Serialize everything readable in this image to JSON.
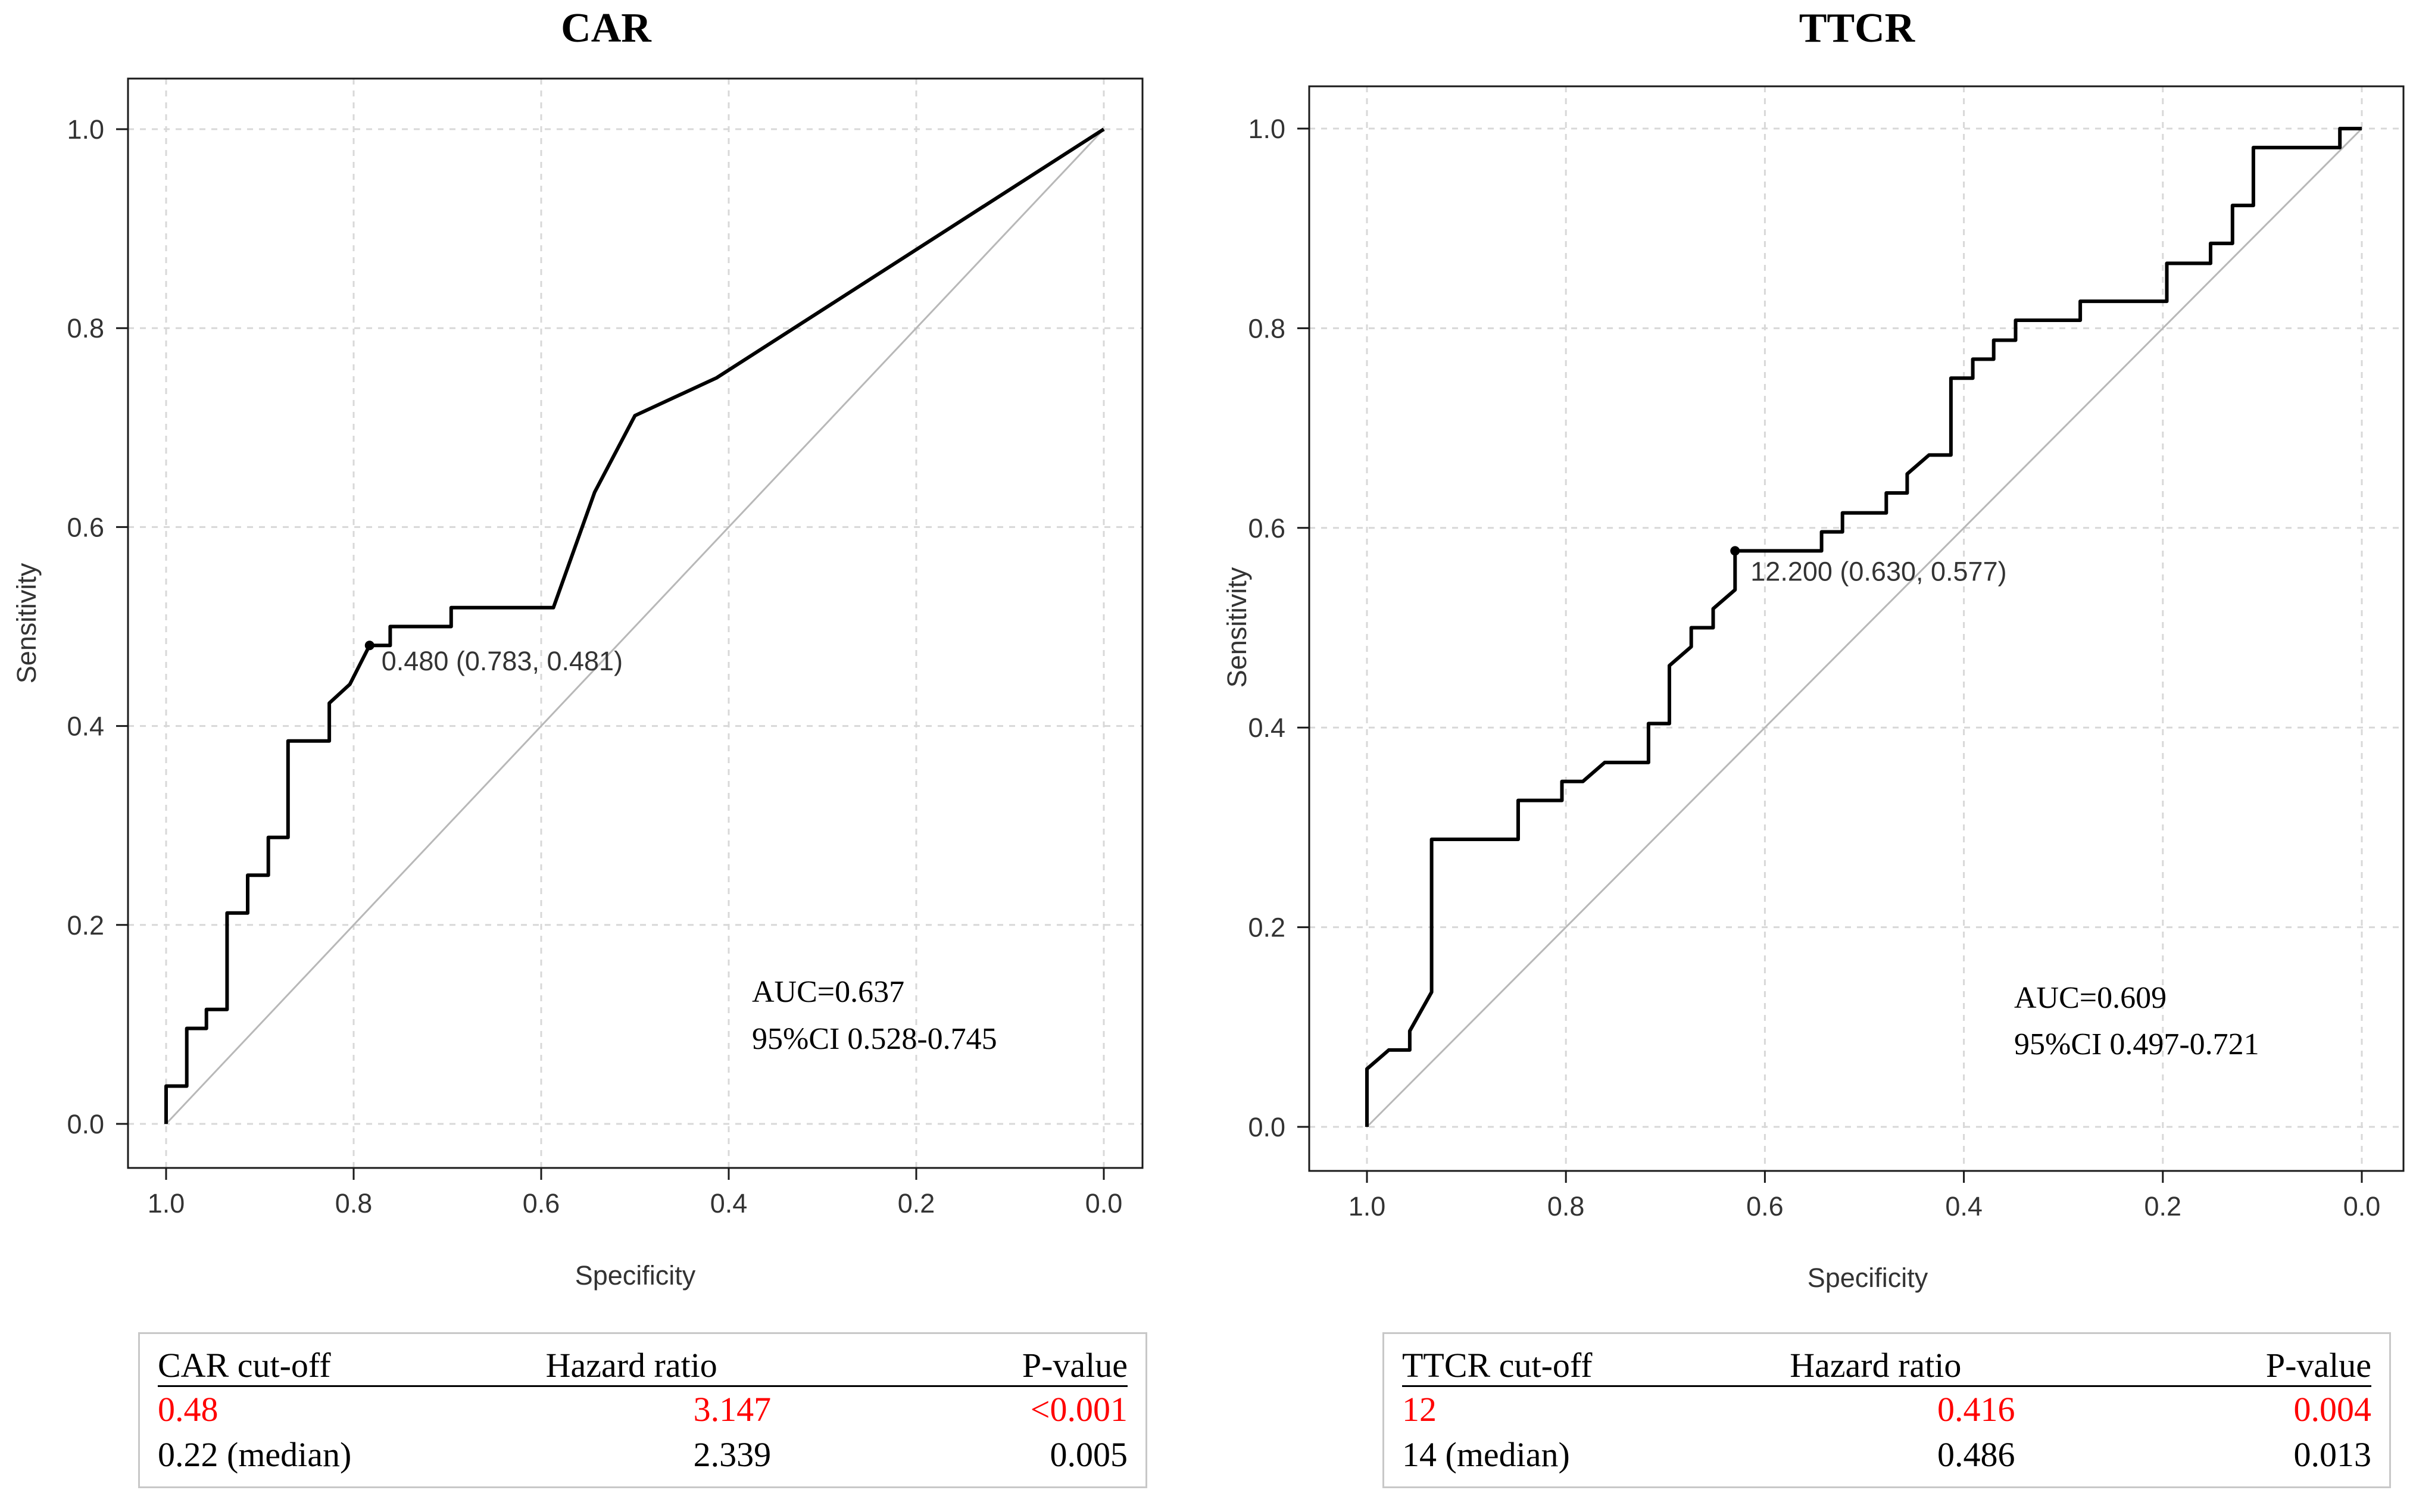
{
  "chart_data": [
    {
      "type": "line",
      "title": "CAR",
      "xlabel": "Specificity",
      "ylabel": "Sensitivity",
      "xlim": [
        1.0,
        0.0
      ],
      "ylim": [
        0.0,
        1.0
      ],
      "xticks": [
        "1.0",
        "0.8",
        "0.6",
        "0.4",
        "0.2",
        "0.0"
      ],
      "yticks": [
        "0.0",
        "0.2",
        "0.4",
        "0.6",
        "0.8",
        "1.0"
      ],
      "grid": true,
      "reference_line": "diagonal",
      "series": [
        {
          "name": "ROC",
          "x": [
            1.0,
            1.0,
            0.978,
            0.978,
            0.957,
            0.957,
            0.935,
            0.935,
            0.913,
            0.913,
            0.891,
            0.891,
            0.87,
            0.87,
            0.826,
            0.826,
            0.804,
            0.783,
            0.761,
            0.761,
            0.696,
            0.696,
            0.587,
            0.543,
            0.5,
            0.413,
            0.0
          ],
          "y": [
            0.0,
            0.038,
            0.038,
            0.096,
            0.096,
            0.115,
            0.115,
            0.212,
            0.212,
            0.25,
            0.25,
            0.288,
            0.288,
            0.385,
            0.385,
            0.423,
            0.442,
            0.481,
            0.481,
            0.5,
            0.5,
            0.519,
            0.519,
            0.635,
            0.712,
            0.75,
            1.0
          ]
        }
      ],
      "optimal_point": {
        "x": 0.783,
        "y": 0.481,
        "label": "0.480 (0.783, 0.481)"
      },
      "auc_text": "AUC=0.637",
      "ci_text": "95%CI 0.528-0.745"
    },
    {
      "type": "line",
      "title": "TTCR",
      "xlabel": "Specificity",
      "ylabel": "Sensitivity",
      "xlim": [
        1.0,
        0.0
      ],
      "ylim": [
        0.0,
        1.0
      ],
      "xticks": [
        "1.0",
        "0.8",
        "0.6",
        "0.4",
        "0.2",
        "0.0"
      ],
      "yticks": [
        "0.0",
        "0.2",
        "0.4",
        "0.6",
        "0.8",
        "1.0"
      ],
      "grid": true,
      "reference_line": "diagonal",
      "series": [
        {
          "name": "ROC",
          "x": [
            1.0,
            1.0,
            0.978,
            0.957,
            0.957,
            0.935,
            0.935,
            0.848,
            0.848,
            0.804,
            0.804,
            0.783,
            0.761,
            0.717,
            0.717,
            0.696,
            0.696,
            0.674,
            0.674,
            0.652,
            0.652,
            0.63,
            0.63,
            0.543,
            0.543,
            0.522,
            0.522,
            0.478,
            0.478,
            0.457,
            0.457,
            0.435,
            0.413,
            0.413,
            0.391,
            0.391,
            0.37,
            0.37,
            0.348,
            0.348,
            0.283,
            0.283,
            0.196,
            0.196,
            0.152,
            0.152,
            0.13,
            0.13,
            0.109,
            0.109,
            0.022,
            0.022,
            0.0
          ],
          "y": [
            0.0,
            0.058,
            0.077,
            0.077,
            0.096,
            0.135,
            0.288,
            0.288,
            0.327,
            0.327,
            0.346,
            0.346,
            0.365,
            0.365,
            0.404,
            0.404,
            0.462,
            0.481,
            0.5,
            0.5,
            0.519,
            0.538,
            0.577,
            0.577,
            0.596,
            0.596,
            0.615,
            0.615,
            0.635,
            0.635,
            0.654,
            0.673,
            0.673,
            0.75,
            0.75,
            0.769,
            0.769,
            0.788,
            0.788,
            0.808,
            0.808,
            0.827,
            0.827,
            0.865,
            0.865,
            0.885,
            0.885,
            0.923,
            0.923,
            0.981,
            0.981,
            1.0,
            1.0
          ]
        }
      ],
      "optimal_point": {
        "x": 0.63,
        "y": 0.577,
        "label": "12.200 (0.630, 0.577)"
      },
      "auc_text": "AUC=0.609",
      "ci_text": "95%CI 0.497-0.721"
    }
  ],
  "tables": {
    "left": {
      "headers": [
        "CAR cut-off",
        "Hazard ratio",
        "P-value"
      ],
      "rows": [
        {
          "cutoff": "0.48",
          "hr": "3.147",
          "p": "<0.001"
        },
        {
          "cutoff": "0.22 (median)",
          "hr": "2.339",
          "p": "0.005"
        }
      ]
    },
    "right": {
      "headers": [
        "TTCR cut-off",
        "Hazard ratio",
        "P-value"
      ],
      "rows": [
        {
          "cutoff": "12",
          "hr": "0.416",
          "p": "0.004"
        },
        {
          "cutoff": "14 (median)",
          "hr": "0.486",
          "p": "0.013"
        }
      ]
    }
  },
  "colors": {
    "highlight": "#ff0000",
    "curve": "#000000",
    "grid": "#d8d8d8",
    "diagonal": "#b8b8b8"
  }
}
